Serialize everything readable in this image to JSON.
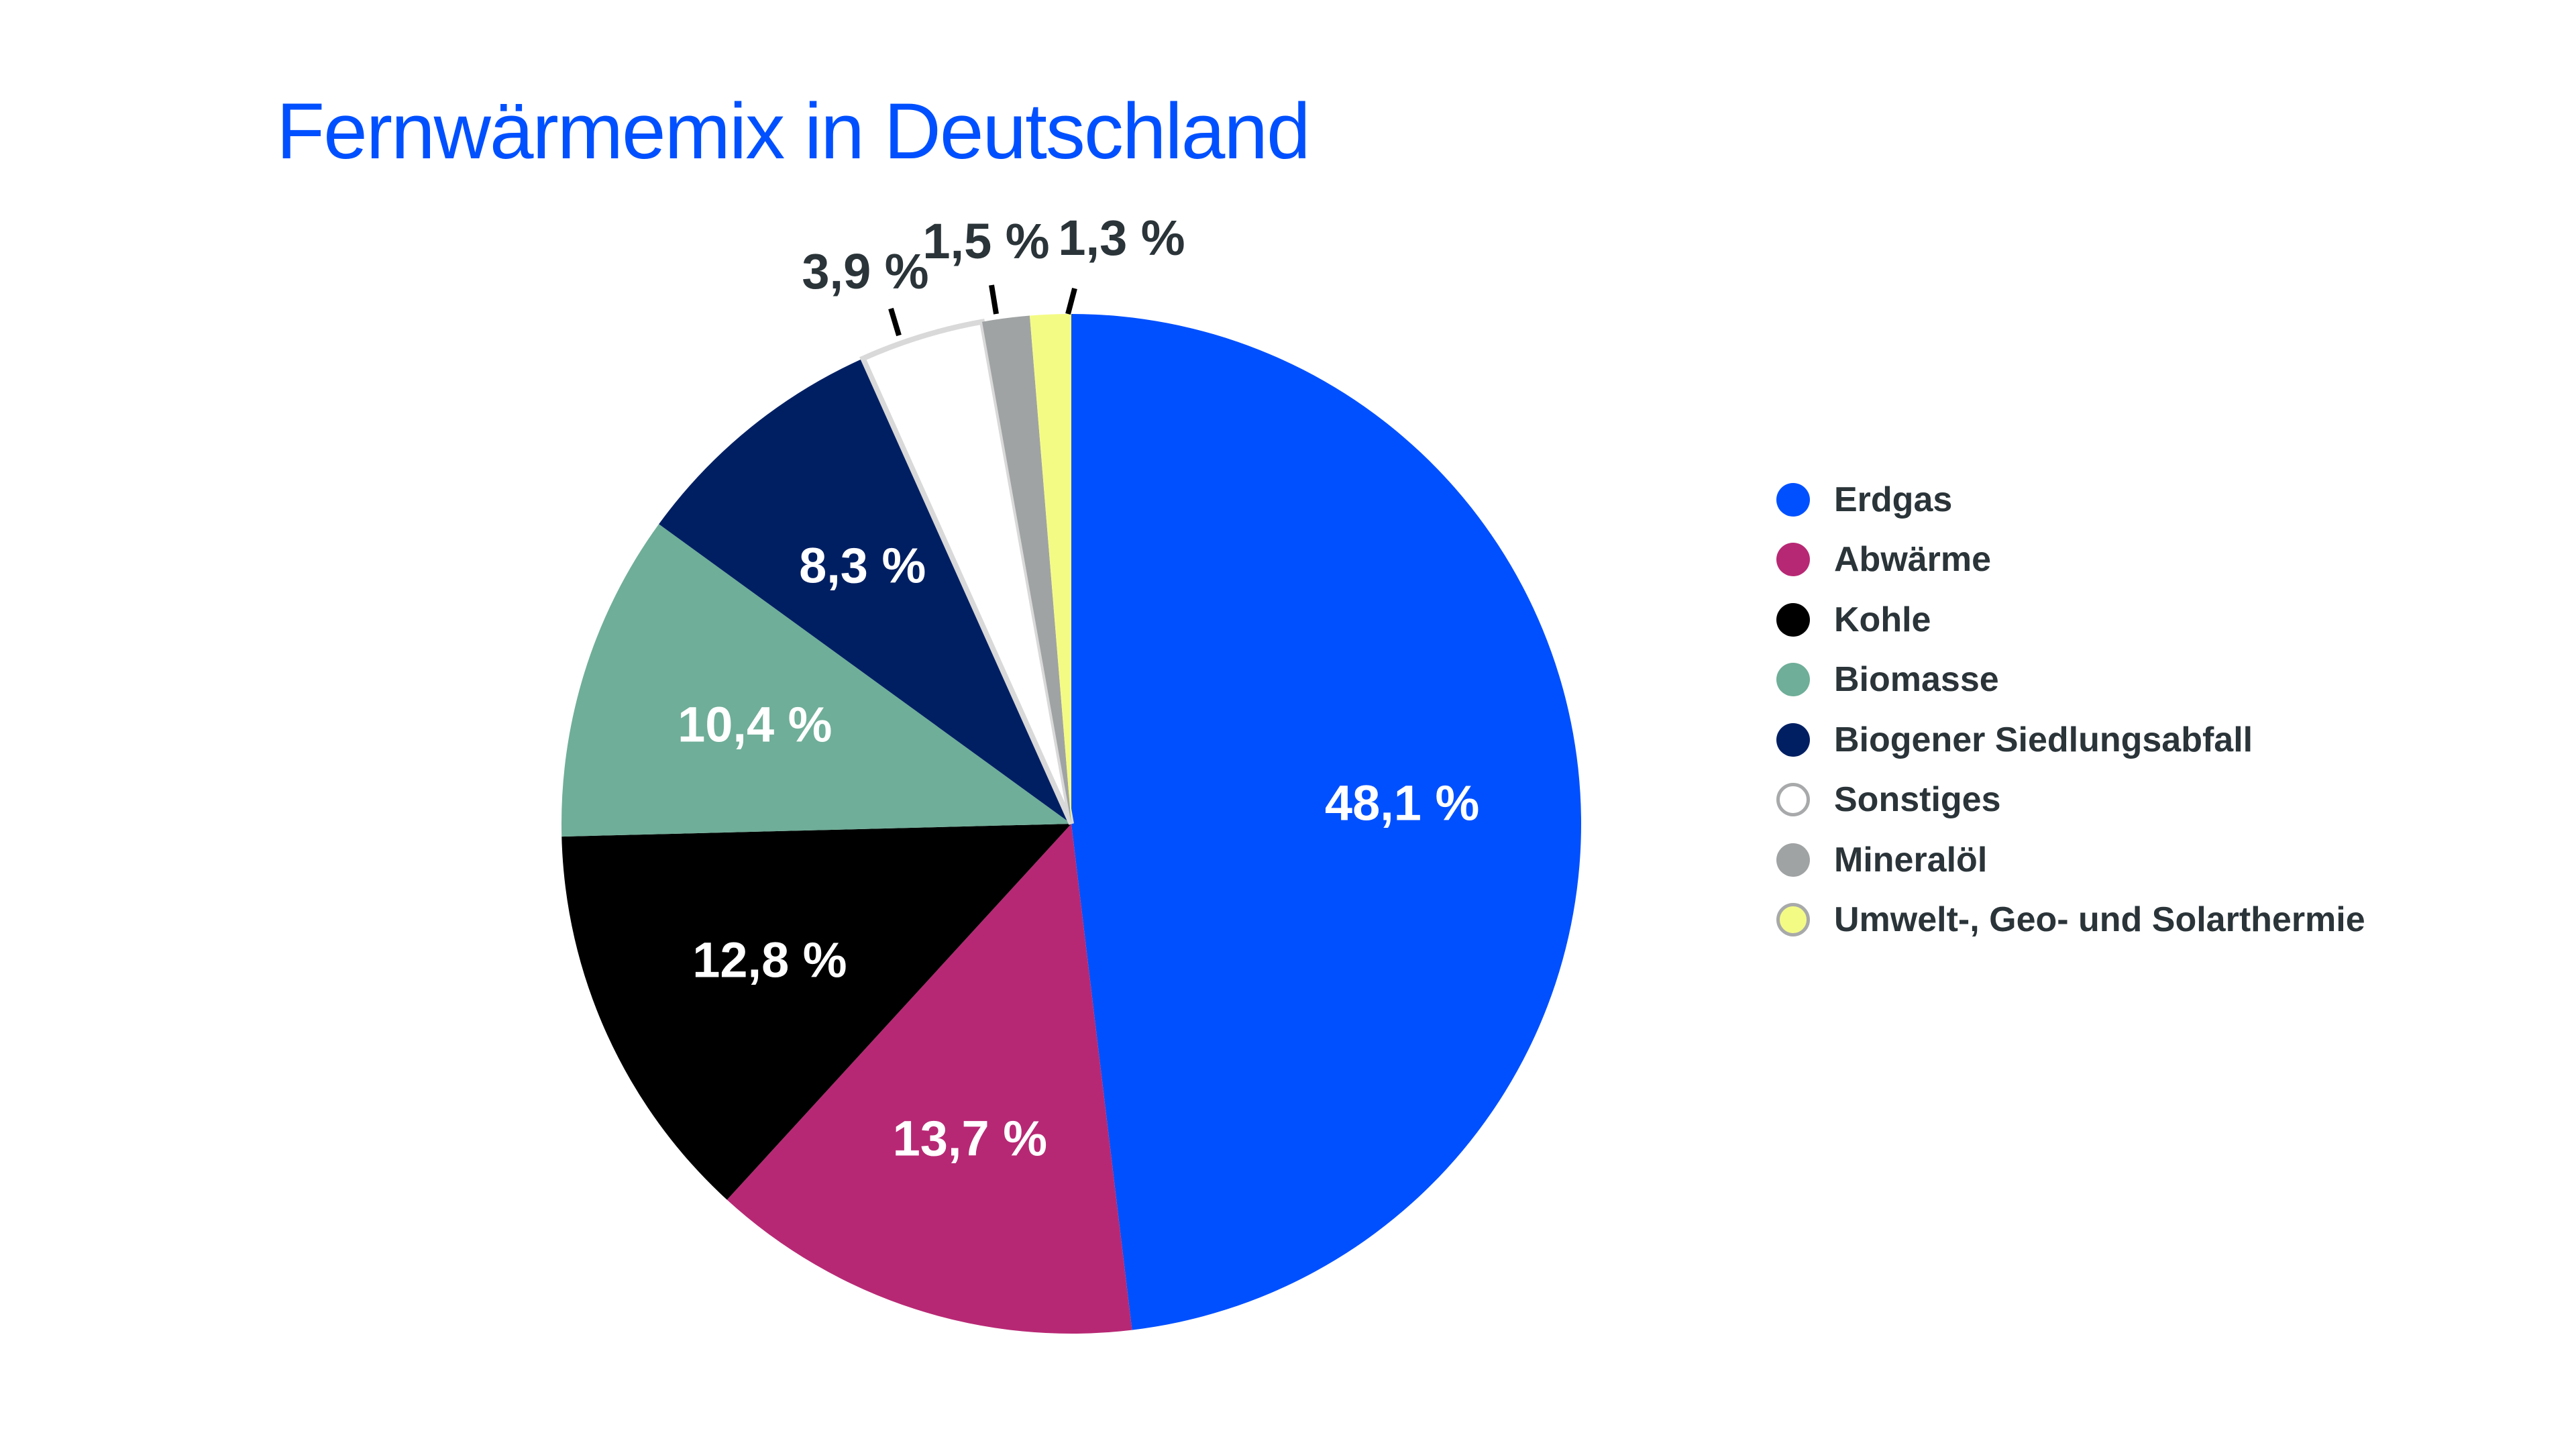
{
  "chart_data": {
    "type": "pie",
    "title": "Fernwärmemix in Deutschland",
    "unit": "%",
    "legend_position": "right",
    "slices": [
      {
        "name": "Erdgas",
        "value": 48.1,
        "label": "48,1 %",
        "color": "#0050ff",
        "label_color": "#ffffff"
      },
      {
        "name": "Abwärme",
        "value": 13.7,
        "label": "13,7 %",
        "color": "#b72874",
        "label_color": "#ffffff"
      },
      {
        "name": "Kohle",
        "value": 12.8,
        "label": "12,8 %",
        "color": "#000000",
        "label_color": "#ffffff"
      },
      {
        "name": "Biomasse",
        "value": 10.4,
        "label": "10,4 %",
        "color": "#6fae98",
        "label_color": "#ffffff"
      },
      {
        "name": "Biogener Siedlungsabfall",
        "value": 8.3,
        "label": "8,3 %",
        "color": "#001f63",
        "label_color": "#ffffff"
      },
      {
        "name": "Sonstiges",
        "value": 3.9,
        "label": "3,9 %",
        "color": "#ffffff",
        "label_color": "#2a3439"
      },
      {
        "name": "Mineralöl",
        "value": 1.5,
        "label": "1,5 %",
        "color": "#a0a3a4",
        "label_color": "#2a3439"
      },
      {
        "name": "Umwelt-, Geo- und Solarthermie",
        "value": 1.3,
        "label": "1,3 %",
        "color": "#f4fb85",
        "label_color": "#2a3439"
      }
    ]
  }
}
